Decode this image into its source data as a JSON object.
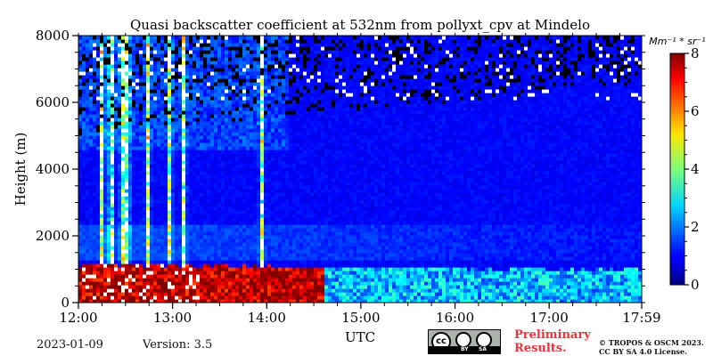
{
  "chart_data": {
    "type": "heatmap",
    "title": "Quasi backscatter coefficient at 532nm from pollyxt_cpv at Mindelo",
    "xlabel": "UTC",
    "ylabel": "Height (m)",
    "x_ticks": [
      "12:00",
      "13:00",
      "14:00",
      "15:00",
      "16:00",
      "17:00",
      "17:59"
    ],
    "x_range_hours": [
      12.0,
      17.983
    ],
    "y_ticks": [
      0,
      2000,
      4000,
      6000,
      8000
    ],
    "ylim": [
      0,
      8000
    ],
    "colorbar": {
      "unit_label": "Mm⁻¹ * sr⁻¹",
      "ticks": [
        0,
        2,
        4,
        6,
        8
      ],
      "range": [
        0,
        8
      ],
      "colormap": "jet"
    },
    "features": {
      "boundary_layer_top_m": 1100,
      "boundary_layer_value_early": 7.5,
      "boundary_layer_value_late": 2.5,
      "aerosol_layer_m": [
        1200,
        2300
      ],
      "background_value": 1.0,
      "cloud_times_hours": [
        12.23,
        12.33,
        12.45,
        12.5,
        12.72,
        12.95,
        13.1,
        13.93
      ],
      "strong_signal_until_hours": 14.6
    }
  },
  "footer": {
    "date": "2023-01-09",
    "version": "Version: 3.5",
    "license_badge": {
      "left": "BY",
      "right": "SA"
    },
    "preliminary": [
      "Preliminary",
      "Results."
    ],
    "copyright": [
      "© TROPOS & OSCM 2023.",
      "CC BY SA 4.0 License."
    ]
  }
}
